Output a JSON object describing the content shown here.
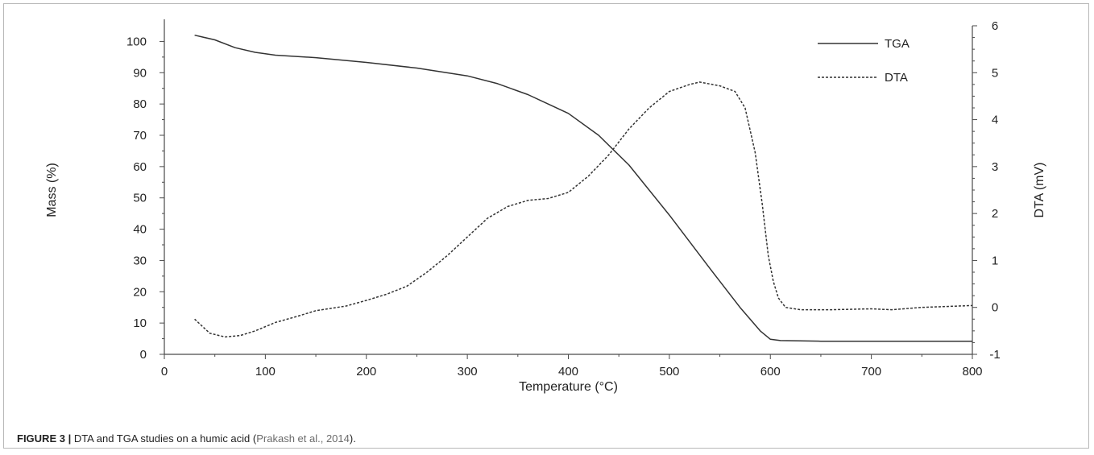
{
  "chart_data": {
    "type": "line",
    "title": "",
    "xlabel": "Temperature (°C)",
    "ylabel_left": "Mass (%)",
    "ylabel_right": "DTA (mV)",
    "xlim": [
      0,
      800
    ],
    "ylim_left": [
      0,
      105
    ],
    "ylim_right": [
      -1,
      6
    ],
    "x_ticks": [
      0,
      100,
      200,
      300,
      400,
      500,
      600,
      700,
      800
    ],
    "y_left_ticks": [
      0,
      10,
      20,
      30,
      40,
      50,
      60,
      70,
      80,
      90,
      100
    ],
    "y_right_ticks": [
      -1,
      0,
      1,
      2,
      3,
      4,
      5,
      6
    ],
    "grid": false,
    "legend": "top-right",
    "series": [
      {
        "name": "TGA",
        "axis": "left",
        "style": "solid",
        "color": "#333333",
        "x": [
          30,
          50,
          70,
          90,
          110,
          150,
          200,
          250,
          300,
          330,
          360,
          400,
          430,
          460,
          500,
          540,
          570,
          590,
          600,
          610,
          650,
          700,
          750,
          800
        ],
        "y": [
          102,
          100.5,
          98,
          96.5,
          95.6,
          94.8,
          93.3,
          91.5,
          89,
          86.5,
          83,
          77,
          70,
          60.5,
          44.5,
          27.5,
          15,
          7.5,
          4.8,
          4.4,
          4.2,
          4.2,
          4.2,
          4.2
        ]
      },
      {
        "name": "DTA",
        "axis": "right",
        "style": "dashed",
        "color": "#333333",
        "x": [
          30,
          45,
          60,
          75,
          90,
          110,
          130,
          150,
          180,
          200,
          220,
          240,
          260,
          280,
          300,
          320,
          340,
          360,
          380,
          400,
          420,
          440,
          460,
          480,
          500,
          520,
          530,
          550,
          565,
          575,
          585,
          592,
          598,
          603,
          608,
          615,
          630,
          660,
          700,
          720,
          750,
          800
        ],
        "y": [
          -0.25,
          -0.55,
          -0.63,
          -0.6,
          -0.5,
          -0.32,
          -0.2,
          -0.07,
          0.03,
          0.15,
          0.28,
          0.45,
          0.75,
          1.1,
          1.5,
          1.9,
          2.15,
          2.28,
          2.32,
          2.45,
          2.8,
          3.25,
          3.8,
          4.25,
          4.6,
          4.75,
          4.8,
          4.72,
          4.6,
          4.25,
          3.3,
          2.2,
          1.1,
          0.55,
          0.2,
          0.0,
          -0.05,
          -0.05,
          -0.03,
          -0.05,
          0.0,
          0.04
        ]
      }
    ]
  },
  "caption": {
    "label": "FIGURE 3 |",
    "text": " DTA and TGA studies on a humic acid (",
    "ref": "Prakash et al., 2014",
    "end": ")."
  }
}
